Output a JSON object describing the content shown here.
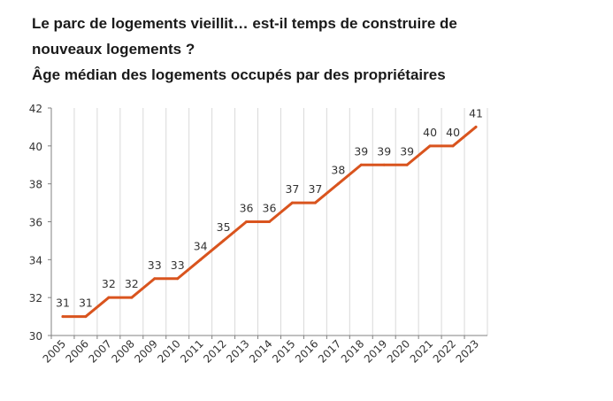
{
  "header": {
    "title_line1": "Le parc de logements vieillit… est-il temps de construire de",
    "title_line2": "nouveaux logements ?",
    "subtitle": "Âge médian des logements occupés par des propriétaires"
  },
  "colors": {
    "line": "#d9541e",
    "grid": "#d9d9d9",
    "axis": "#808080"
  },
  "chart_data": {
    "type": "line",
    "title": "Le parc de logements vieillit… est-il temps de construire de nouveaux logements ?",
    "subtitle": "Âge médian des logements occupés par des propriétaires",
    "xlabel": "",
    "ylabel": "",
    "categories": [
      "2005",
      "2006",
      "2007",
      "2008",
      "2009",
      "2010",
      "2011",
      "2012",
      "2013",
      "2014",
      "2015",
      "2016",
      "2017",
      "2018",
      "2019",
      "2020",
      "2021",
      "2022",
      "2023"
    ],
    "series": [
      {
        "values": [
          31,
          31,
          32,
          32,
          33,
          33,
          34,
          35,
          36,
          36,
          37,
          37,
          38,
          39,
          39,
          39,
          40,
          40,
          41
        ]
      }
    ],
    "ylim": [
      30,
      42
    ],
    "yticks": [
      30,
      32,
      34,
      36,
      38,
      40,
      42
    ],
    "grid": "vertical",
    "legend": "none"
  }
}
